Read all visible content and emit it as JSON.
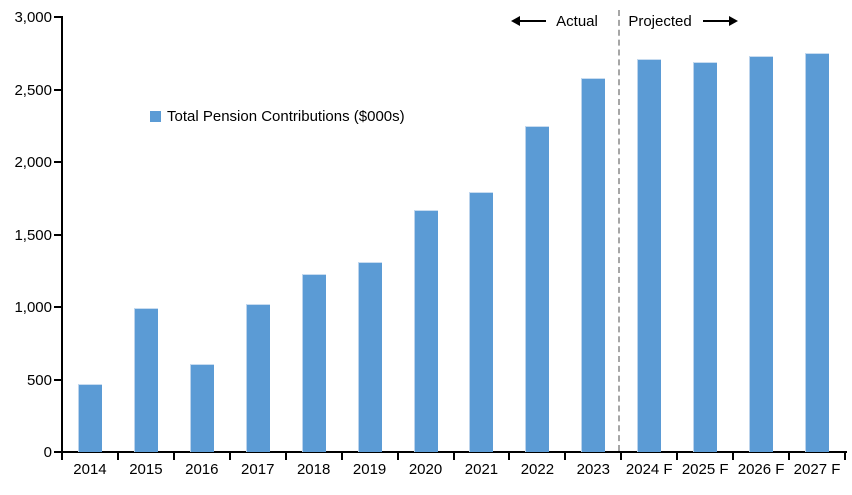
{
  "chart_data": {
    "type": "bar",
    "title": "",
    "categories": [
      "2014",
      "2015",
      "2016",
      "2017",
      "2018",
      "2019",
      "2020",
      "2021",
      "2022",
      "2023",
      "2024 F",
      "2025 F",
      "2026 F",
      "2027 F"
    ],
    "values": [
      470,
      990,
      610,
      1020,
      1230,
      1310,
      1670,
      1790,
      2250,
      2580,
      2710,
      2690,
      2730,
      2750
    ],
    "series_name": "Total Pension Contributions ($000s)",
    "xlabel": "",
    "ylabel": "",
    "ylim": [
      0,
      3000
    ],
    "yticks": [
      {
        "value": 3000,
        "label": "3,000"
      },
      {
        "value": 2500,
        "label": "2,500"
      },
      {
        "value": 2000,
        "label": "2,000"
      },
      {
        "value": 1500,
        "label": "1,500"
      },
      {
        "value": 1000,
        "label": "1,000"
      },
      {
        "value": 500,
        "label": "500"
      },
      {
        "value": 0,
        "label": "0"
      }
    ],
    "grid": false,
    "legend_position": "upper-left-inside",
    "bar_color": "#5B9BD5",
    "axis_color": "#000000",
    "annotations": {
      "actual_label": "Actual",
      "projected_label": "Projected",
      "divider_after_category": "2023",
      "divider_color": "#A6A6A6"
    }
  },
  "legend": {
    "label": "Total Pension Contributions ($000s)"
  }
}
